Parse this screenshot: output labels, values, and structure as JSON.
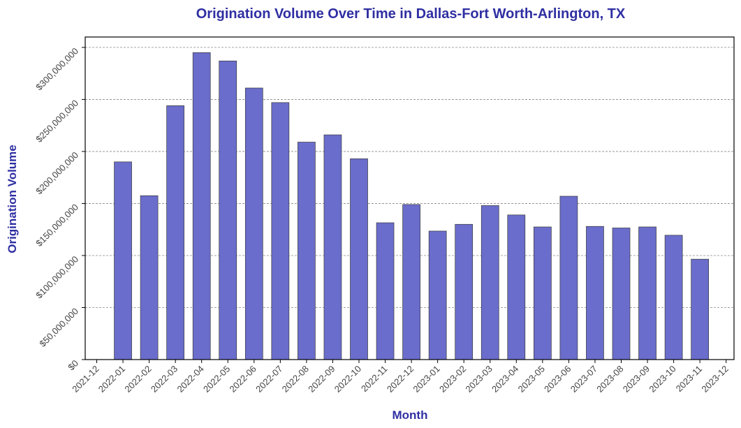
{
  "chart_data": {
    "type": "bar",
    "title": "Origination Volume Over Time in Dallas-Fort Worth-Arlington, TX",
    "xlabel": "Month",
    "ylabel": "Origination Volume",
    "x_tick_labels": [
      "2021-12",
      "2022-01",
      "2022-02",
      "2022-03",
      "2022-04",
      "2022-05",
      "2022-06",
      "2022-07",
      "2022-08",
      "2022-09",
      "2022-10",
      "2022-11",
      "2022-12",
      "2023-01",
      "2023-02",
      "2023-03",
      "2023-04",
      "2023-05",
      "2023-06",
      "2023-07",
      "2023-08",
      "2023-09",
      "2023-10",
      "2023-11",
      "2023-12"
    ],
    "categories": [
      "2022-01",
      "2022-02",
      "2022-03",
      "2022-04",
      "2022-05",
      "2022-06",
      "2022-07",
      "2022-08",
      "2022-09",
      "2022-10",
      "2022-11",
      "2022-12",
      "2023-01",
      "2023-02",
      "2023-03",
      "2023-04",
      "2023-05",
      "2023-06",
      "2023-07",
      "2023-08",
      "2023-09",
      "2023-10",
      "2023-11"
    ],
    "values": [
      190000000,
      157500000,
      244000000,
      295000000,
      287000000,
      261000000,
      247000000,
      209000000,
      216000000,
      193000000,
      131500000,
      149000000,
      123500000,
      130000000,
      148000000,
      139000000,
      127500000,
      157000000,
      128000000,
      126500000,
      127500000,
      119500000,
      96500000
    ],
    "y_ticks": [
      0,
      50000000,
      100000000,
      150000000,
      200000000,
      250000000,
      300000000
    ],
    "y_tick_labels": [
      "$0",
      "$50,000,000",
      "$100,000,000",
      "$150,000,000",
      "$200,000,000",
      "$250,000,000",
      "$300,000,000"
    ],
    "ylim": [
      0,
      310000000
    ],
    "grid": "horizontal-dashed",
    "legend": "none",
    "colors": {
      "bar_fill": "#6a6dcb",
      "bar_stroke": "#3a3a3a",
      "title": "#2f2fa3",
      "axis_label": "#2f2fa3",
      "grid": "#888888"
    }
  }
}
